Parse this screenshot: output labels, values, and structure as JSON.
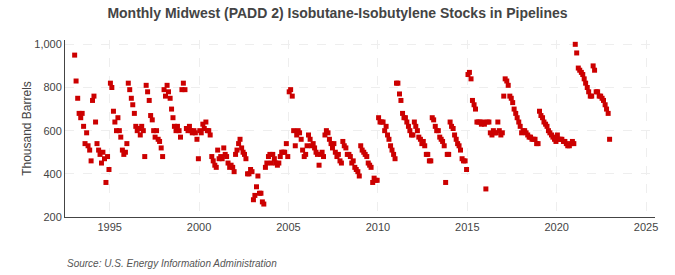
{
  "chart_data": {
    "type": "scatter",
    "title": "Monthly Midwest (PADD 2) Isobutane-Isobutylene Stocks in Pipelines",
    "ylabel": "Thousand Barrels",
    "annotations": [
      "Source: U.S. Energy Information Administration"
    ],
    "color": "#cc0000",
    "marker": "square",
    "grid": true,
    "xlim": [
      1992.5,
      2025.5
    ],
    "xticks": [
      1995,
      2000,
      2005,
      2010,
      2015,
      2020,
      2025
    ],
    "ylim": [
      200,
      1020
    ],
    "yticks": [
      200,
      400,
      600,
      800,
      {
        "value": 1000,
        "label": "1,000"
      }
    ],
    "x": [
      1993.04,
      1993.12,
      1993.21,
      1993.29,
      1993.38,
      1993.46,
      1993.54,
      1993.62,
      1993.71,
      1993.79,
      1993.88,
      1993.96,
      1994.04,
      1994.12,
      1994.21,
      1994.29,
      1994.38,
      1994.46,
      1994.54,
      1994.62,
      1994.71,
      1994.79,
      1994.88,
      1994.96,
      1995.04,
      1995.12,
      1995.21,
      1995.29,
      1995.38,
      1995.46,
      1995.54,
      1995.62,
      1995.71,
      1995.79,
      1995.88,
      1995.96,
      1996.04,
      1996.12,
      1996.21,
      1996.29,
      1996.38,
      1996.46,
      1996.54,
      1996.62,
      1996.71,
      1996.79,
      1996.88,
      1996.96,
      1997.04,
      1997.12,
      1997.21,
      1997.29,
      1997.38,
      1997.46,
      1997.54,
      1997.62,
      1997.71,
      1997.79,
      1997.88,
      1997.96,
      1998.04,
      1998.12,
      1998.21,
      1998.29,
      1998.38,
      1998.46,
      1998.54,
      1998.62,
      1998.71,
      1998.79,
      1998.88,
      1998.96,
      1999.04,
      1999.12,
      1999.21,
      1999.29,
      1999.38,
      1999.46,
      1999.54,
      1999.62,
      1999.71,
      1999.79,
      1999.88,
      1999.96,
      2000.04,
      2000.12,
      2000.21,
      2000.29,
      2000.38,
      2000.46,
      2000.54,
      2000.62,
      2000.71,
      2000.79,
      2000.88,
      2000.96,
      2001.04,
      2001.12,
      2001.21,
      2001.29,
      2001.38,
      2001.46,
      2001.54,
      2001.62,
      2001.71,
      2001.79,
      2001.88,
      2001.96,
      2002.04,
      2002.12,
      2002.21,
      2002.29,
      2002.38,
      2002.46,
      2002.54,
      2002.62,
      2002.71,
      2002.79,
      2002.88,
      2002.96,
      2003.04,
      2003.12,
      2003.21,
      2003.29,
      2003.38,
      2003.46,
      2003.54,
      2003.62,
      2003.71,
      2003.79,
      2003.88,
      2003.96,
      2004.04,
      2004.12,
      2004.21,
      2004.29,
      2004.38,
      2004.46,
      2004.54,
      2004.62,
      2004.71,
      2004.79,
      2004.88,
      2004.96,
      2005.04,
      2005.12,
      2005.21,
      2005.29,
      2005.38,
      2005.46,
      2005.54,
      2005.62,
      2005.71,
      2005.79,
      2005.88,
      2005.96,
      2006.04,
      2006.12,
      2006.21,
      2006.29,
      2006.38,
      2006.46,
      2006.54,
      2006.62,
      2006.71,
      2006.79,
      2006.88,
      2006.96,
      2007.04,
      2007.12,
      2007.21,
      2007.29,
      2007.38,
      2007.46,
      2007.54,
      2007.62,
      2007.71,
      2007.79,
      2007.88,
      2007.96,
      2008.04,
      2008.12,
      2008.21,
      2008.29,
      2008.38,
      2008.46,
      2008.54,
      2008.62,
      2008.71,
      2008.79,
      2008.88,
      2008.96,
      2009.04,
      2009.12,
      2009.21,
      2009.29,
      2009.38,
      2009.46,
      2009.54,
      2009.62,
      2009.71,
      2009.79,
      2009.88,
      2009.96,
      2010.04,
      2010.12,
      2010.21,
      2010.29,
      2010.38,
      2010.46,
      2010.54,
      2010.62,
      2010.71,
      2010.79,
      2010.88,
      2010.96,
      2011.04,
      2011.12,
      2011.21,
      2011.29,
      2011.38,
      2011.46,
      2011.54,
      2011.62,
      2011.71,
      2011.79,
      2011.88,
      2011.96,
      2012.04,
      2012.12,
      2012.21,
      2012.29,
      2012.38,
      2012.46,
      2012.54,
      2012.62,
      2012.71,
      2012.79,
      2012.88,
      2012.96,
      2013.04,
      2013.12,
      2013.21,
      2013.29,
      2013.38,
      2013.46,
      2013.54,
      2013.62,
      2013.71,
      2013.79,
      2013.88,
      2013.96,
      2014.04,
      2014.12,
      2014.21,
      2014.29,
      2014.38,
      2014.46,
      2014.54,
      2014.62,
      2014.71,
      2014.79,
      2014.88,
      2014.96,
      2015.04,
      2015.12,
      2015.21,
      2015.29,
      2015.38,
      2015.46,
      2015.54,
      2015.62,
      2015.71,
      2015.79,
      2015.88,
      2015.96,
      2016.04,
      2016.12,
      2016.21,
      2016.29,
      2016.38,
      2016.46,
      2016.54,
      2016.62,
      2016.71,
      2016.79,
      2016.88,
      2016.96,
      2017.04,
      2017.12,
      2017.21,
      2017.29,
      2017.38,
      2017.46,
      2017.54,
      2017.62,
      2017.71,
      2017.79,
      2017.88,
      2017.96,
      2018.04,
      2018.12,
      2018.21,
      2018.29,
      2018.38,
      2018.46,
      2018.54,
      2018.62,
      2018.71,
      2018.79,
      2018.88,
      2018.96,
      2019.04,
      2019.12,
      2019.21,
      2019.29,
      2019.38,
      2019.46,
      2019.54,
      2019.62,
      2019.71,
      2019.79,
      2019.88,
      2019.96,
      2020.04,
      2020.12,
      2020.21,
      2020.29,
      2020.38,
      2020.46,
      2020.54,
      2020.62,
      2020.71,
      2020.79,
      2020.88,
      2020.96,
      2021.04,
      2021.12,
      2021.21,
      2021.29,
      2021.38,
      2021.46,
      2021.54,
      2021.62,
      2021.71,
      2021.79,
      2021.88,
      2021.96,
      2022.04,
      2022.12,
      2022.21,
      2022.29,
      2022.38,
      2022.46,
      2022.54,
      2022.62,
      2022.71,
      2022.79,
      2022.88,
      2022.96
    ],
    "values": [
      950,
      830,
      750,
      680,
      660,
      680,
      620,
      540,
      590,
      530,
      510,
      460,
      740,
      760,
      640,
      540,
      510,
      490,
      450,
      500,
      470,
      360,
      480,
      420,
      820,
      800,
      690,
      640,
      600,
      660,
      600,
      570,
      510,
      490,
      500,
      540,
      820,
      790,
      750,
      720,
      680,
      620,
      600,
      610,
      580,
      620,
      600,
      480,
      810,
      780,
      740,
      670,
      650,
      600,
      570,
      600,
      560,
      550,
      520,
      480,
      790,
      760,
      810,
      780,
      750,
      700,
      660,
      620,
      600,
      620,
      600,
      570,
      790,
      820,
      790,
      610,
      600,
      620,
      600,
      590,
      600,
      590,
      560,
      470,
      600,
      590,
      630,
      610,
      640,
      600,
      600,
      580,
      480,
      460,
      440,
      430,
      510,
      470,
      480,
      470,
      520,
      490,
      480,
      450,
      430,
      440,
      430,
      410,
      490,
      510,
      540,
      560,
      520,
      500,
      490,
      470,
      400,
      400,
      420,
      410,
      280,
      300,
      340,
      390,
      310,
      310,
      270,
      260,
      430,
      450,
      480,
      490,
      450,
      490,
      470,
      450,
      440,
      450,
      480,
      500,
      500,
      500,
      540,
      480,
      780,
      790,
      760,
      600,
      530,
      580,
      600,
      590,
      560,
      510,
      480,
      490,
      530,
      580,
      560,
      530,
      540,
      520,
      500,
      490,
      440,
      490,
      500,
      480,
      580,
      600,
      590,
      560,
      540,
      520,
      540,
      500,
      480,
      490,
      460,
      450,
      550,
      530,
      520,
      490,
      490,
      480,
      450,
      460,
      430,
      420,
      410,
      390,
      530,
      510,
      500,
      490,
      480,
      450,
      440,
      430,
      360,
      380,
      370,
      370,
      660,
      640,
      640,
      640,
      600,
      620,
      580,
      560,
      530,
      510,
      490,
      470,
      820,
      820,
      770,
      740,
      680,
      660,
      660,
      640,
      620,
      600,
      580,
      580,
      640,
      620,
      600,
      570,
      560,
      540,
      550,
      530,
      490,
      490,
      460,
      460,
      660,
      650,
      620,
      600,
      600,
      570,
      560,
      550,
      530,
      360,
      490,
      490,
      640,
      620,
      610,
      580,
      560,
      540,
      530,
      510,
      470,
      460,
      460,
      420,
      860,
      870,
      840,
      740,
      720,
      700,
      640,
      640,
      640,
      630,
      640,
      630,
      330,
      640,
      640,
      590,
      580,
      600,
      590,
      590,
      640,
      600,
      580,
      590,
      760,
      840,
      830,
      810,
      760,
      750,
      730,
      700,
      680,
      660,
      640,
      620,
      590,
      600,
      600,
      590,
      580,
      570,
      570,
      560,
      560,
      560,
      540,
      540,
      690,
      670,
      660,
      640,
      630,
      620,
      600,
      590,
      580,
      570,
      560,
      550,
      580,
      560,
      560,
      560,
      550,
      550,
      540,
      530,
      530,
      540,
      550,
      540,
      1000,
      960,
      890,
      880,
      870,
      860,
      840,
      820,
      800,
      780,
      760,
      760,
      900,
      880,
      780,
      780,
      760,
      760,
      750,
      740,
      720,
      700,
      680,
      560
    ]
  }
}
